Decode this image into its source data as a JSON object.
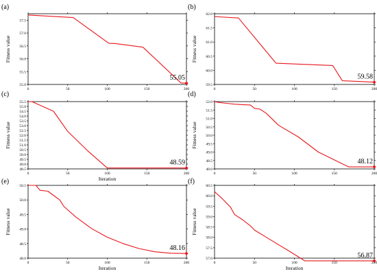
{
  "colors": {
    "line": "#e8151b",
    "axis": "#000000"
  },
  "chart_data": [
    {
      "type": "line",
      "panel": "(a)",
      "xlabel": "",
      "ylabel": "Fitness value",
      "xlim": [
        0,
        200
      ],
      "ylim": [
        55.0,
        57.75
      ],
      "xticks": [
        "0",
        "50",
        "100",
        "150",
        "200"
      ],
      "yticks": [
        "55.0",
        "55.5",
        "56.0",
        "56.5",
        "57.0",
        "57.5"
      ],
      "x": [
        0,
        5,
        57,
        102,
        110,
        145,
        193,
        200
      ],
      "y": [
        57.7,
        57.69,
        57.6,
        56.6,
        56.59,
        56.45,
        55.06,
        55.05
      ],
      "final_label": "55.05"
    },
    {
      "type": "line",
      "panel": "(b)",
      "xlabel": "",
      "ylabel": "Fitness value",
      "xlim": [
        0,
        200
      ],
      "ylim": [
        59.5,
        62.0
      ],
      "xticks": [
        "0",
        "50",
        "100",
        "150",
        "200"
      ],
      "yticks": [
        "59.5",
        "60.0",
        "60.5",
        "61.0",
        "61.5",
        "62.0"
      ],
      "x": [
        0,
        5,
        30,
        77,
        148,
        160,
        200
      ],
      "y": [
        61.9,
        61.89,
        61.85,
        60.25,
        60.17,
        59.63,
        59.58
      ],
      "final_label": "59.58"
    },
    {
      "type": "line",
      "panel": "(c)",
      "xlabel": "Iteration",
      "ylabel": "Fitness value",
      "xlim": [
        0,
        200
      ],
      "ylim": [
        48.5,
        55.5
      ],
      "xticks": [
        "0",
        "50",
        "100",
        "150",
        "200"
      ],
      "yticks": [
        "48.5",
        "49.0",
        "49.5",
        "50.0",
        "50.5",
        "51.0",
        "51.5",
        "52.0",
        "52.5",
        "53.0",
        "53.5",
        "54.0",
        "54.5",
        "55.0",
        "55.5"
      ],
      "x": [
        0,
        5,
        32,
        50,
        75,
        100,
        200
      ],
      "y": [
        55.5,
        55.49,
        54.5,
        52.4,
        50.4,
        48.59,
        48.59
      ],
      "final_label": "48.59"
    },
    {
      "type": "line",
      "panel": "(d)",
      "xlabel": "",
      "ylabel": "Fitness value",
      "xlim": [
        0,
        200
      ],
      "ylim": [
        48.0,
        52.0
      ],
      "xticks": [
        "0",
        "50",
        "100",
        "150",
        "200"
      ],
      "yticks": [
        "48.0",
        "48.5",
        "49.0",
        "49.5",
        "50.0",
        "50.5",
        "51.0",
        "51.5",
        "52.0"
      ],
      "x": [
        0,
        5,
        15,
        25,
        35,
        45,
        50,
        57,
        65,
        80,
        105,
        130,
        168,
        200
      ],
      "y": [
        52.0,
        51.95,
        51.9,
        51.85,
        51.82,
        51.8,
        51.6,
        51.55,
        51.3,
        50.6,
        49.9,
        49.0,
        48.12,
        48.12
      ],
      "final_label": "48.12"
    },
    {
      "type": "line",
      "panel": "(e)",
      "xlabel": "Iteration",
      "ylabel": "Fitness value",
      "xlim": [
        0,
        200
      ],
      "ylim": [
        48.0,
        50.5
      ],
      "xticks": [
        "0",
        "50",
        "100",
        "150",
        "200"
      ],
      "yticks": [
        "48.0",
        "48.5",
        "49.0",
        "49.5",
        "50.0",
        "50.5"
      ],
      "x": [
        0,
        5,
        10,
        15,
        25,
        35,
        40,
        45,
        60,
        80,
        100,
        120,
        140,
        160,
        180,
        200
      ],
      "y": [
        50.5,
        50.5,
        50.5,
        50.33,
        50.3,
        50.1,
        50.0,
        49.78,
        49.42,
        49.02,
        48.72,
        48.5,
        48.33,
        48.22,
        48.17,
        48.16
      ],
      "final_label": "48.16"
    },
    {
      "type": "line",
      "panel": "(f)",
      "xlabel": "Iteration",
      "ylabel": "Fitness value",
      "xlim": [
        0,
        200
      ],
      "ylim": [
        57.0,
        60.5
      ],
      "xticks": [
        "0",
        "50",
        "100",
        "150",
        "200"
      ],
      "yticks": [
        "57.0",
        "57.5",
        "58.0",
        "58.5",
        "59.0",
        "59.5",
        "60.0",
        "60.5"
      ],
      "x": [
        0,
        10,
        20,
        25,
        35,
        45,
        50,
        65,
        80,
        95,
        113,
        200
      ],
      "y": [
        60.2,
        59.85,
        59.45,
        59.1,
        58.85,
        58.55,
        58.35,
        58.0,
        57.65,
        57.3,
        56.87,
        56.87
      ],
      "final_label": "56.87"
    }
  ]
}
